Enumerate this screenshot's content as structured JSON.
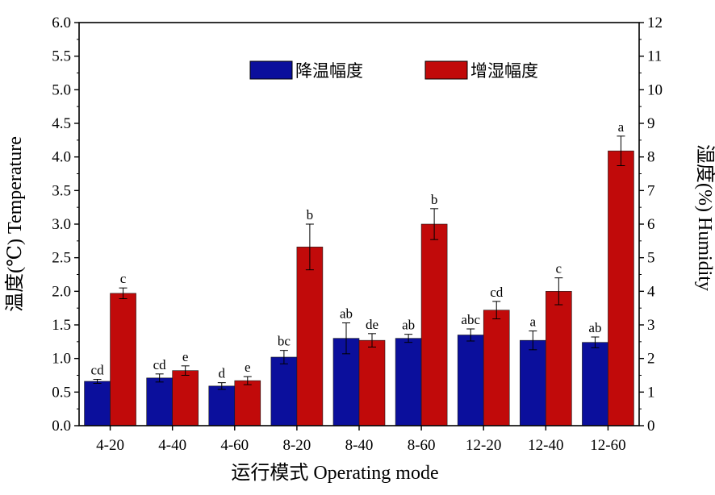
{
  "chart_data": {
    "type": "bar",
    "categories": [
      "4-20",
      "4-40",
      "4-60",
      "8-20",
      "8-40",
      "8-60",
      "12-20",
      "12-40",
      "12-60"
    ],
    "xlabel": "运行模式 Operating mode",
    "ylabel_left": "温度(℃) Temperature",
    "ylabel_right": "湿度(%) Humidity",
    "ylim_left": [
      0,
      6
    ],
    "ylim_right": [
      0,
      12
    ],
    "yticks_left": [
      "0.0",
      "0.5",
      "1.0",
      "1.5",
      "2.0",
      "2.5",
      "3.0",
      "3.5",
      "4.0",
      "4.5",
      "5.0",
      "5.5",
      "6.0"
    ],
    "yticks_right": [
      "0",
      "1",
      "2",
      "3",
      "4",
      "5",
      "6",
      "7",
      "8",
      "9",
      "10",
      "11",
      "12"
    ],
    "legend_position": "top-center",
    "grid": false,
    "series": [
      {
        "name": "降温幅度",
        "axis": "left",
        "color": "#0b0f9c",
        "values": [
          0.66,
          0.71,
          0.59,
          1.02,
          1.3,
          1.3,
          1.35,
          1.27,
          1.24
        ],
        "errors": [
          0.03,
          0.06,
          0.05,
          0.1,
          0.23,
          0.06,
          0.09,
          0.14,
          0.08
        ],
        "labels": [
          "cd",
          "cd",
          "d",
          "bc",
          "ab",
          "ab",
          "abc",
          "a",
          "ab"
        ]
      },
      {
        "name": "增湿幅度",
        "axis": "right",
        "color": "#c10a0a",
        "values": [
          3.94,
          1.64,
          1.34,
          5.32,
          2.54,
          6.0,
          3.44,
          4.0,
          8.18
        ],
        "errors": [
          0.16,
          0.14,
          0.12,
          0.68,
          0.2,
          0.46,
          0.26,
          0.4,
          0.44
        ],
        "labels": [
          "c",
          "e",
          "e",
          "b",
          "de",
          "b",
          "cd",
          "c",
          "a"
        ]
      }
    ]
  }
}
